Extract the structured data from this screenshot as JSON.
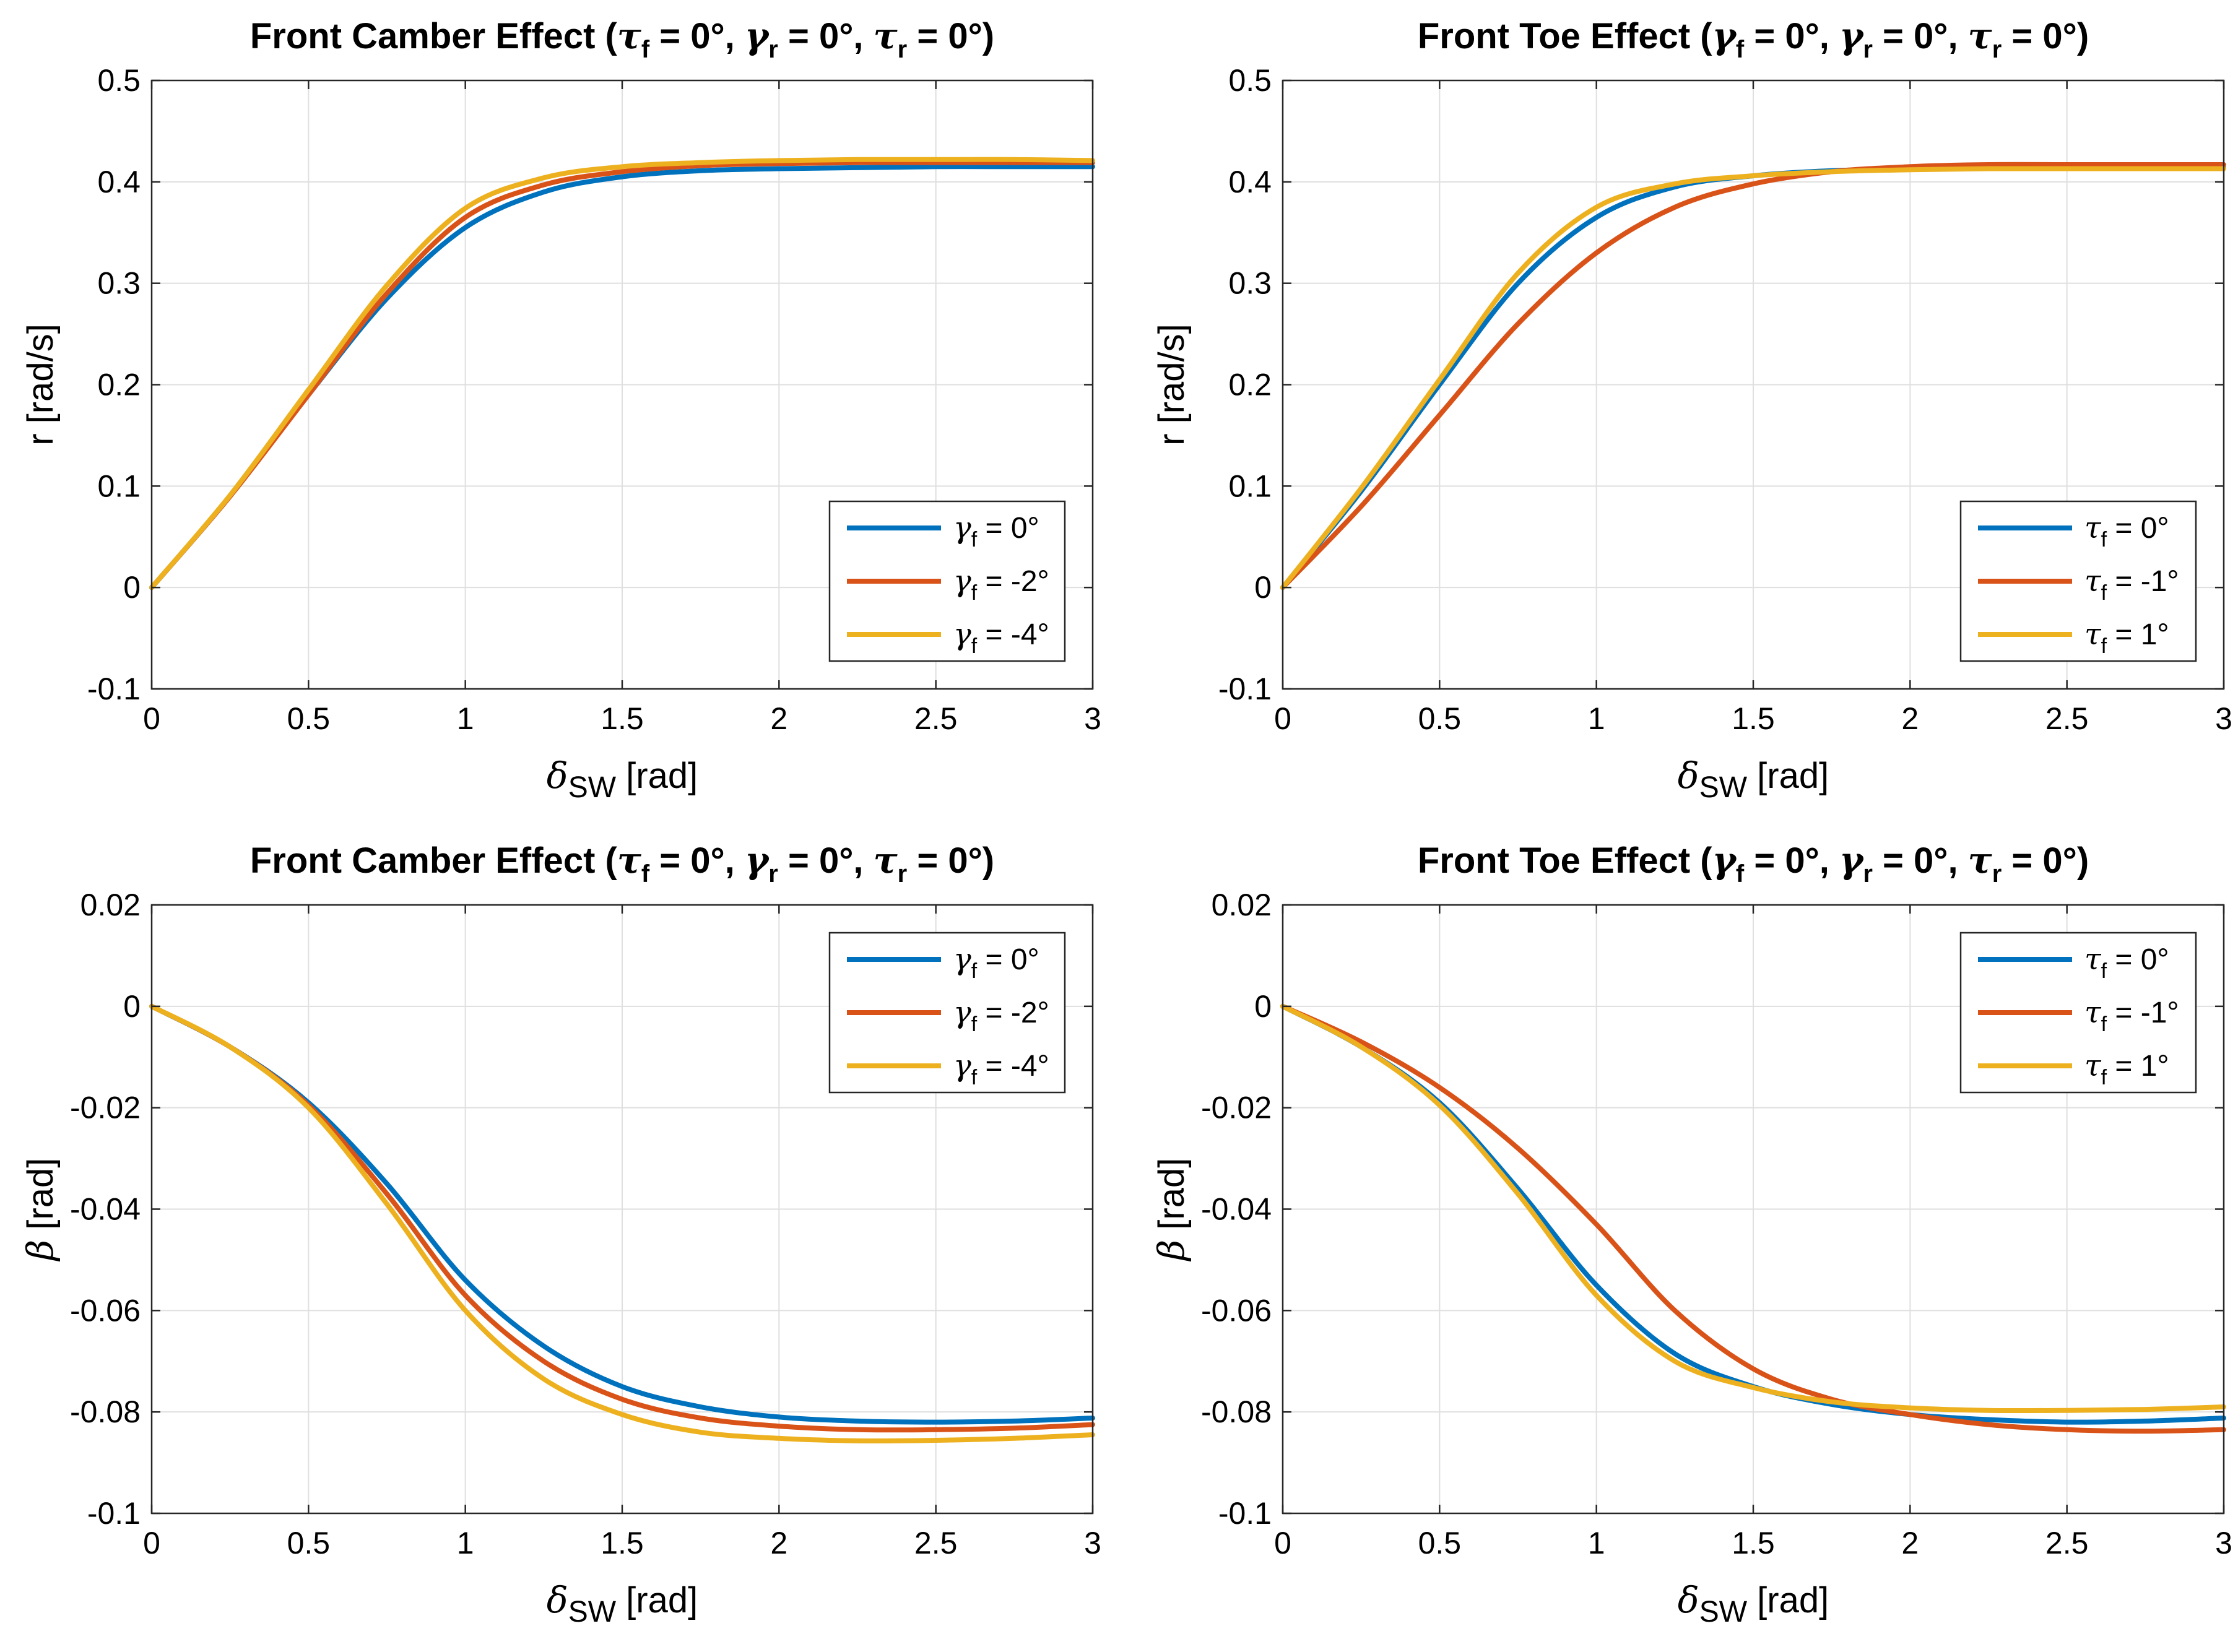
{
  "colors": {
    "series1": "#0072BD",
    "series2": "#D95319",
    "series3": "#EDB120",
    "grid": "#DFDFDF",
    "axis": "#262626"
  },
  "chart_data": [
    {
      "type": "line",
      "panel": "top-left",
      "title": "Front Camber Effect (τf = 0°, γr = 0°, τr = 0°)",
      "title_parts": {
        "prefix": "Front Camber Effect (",
        "s1": "τ",
        "sub1": "f",
        "e1": " = 0°, ",
        "s2": "γ",
        "sub2": "r",
        "e2": " = 0°, ",
        "s3": "τ",
        "sub3": "r",
        "e3": " = 0°)"
      },
      "xlabel": {
        "symbol": "δ",
        "sub": "SW",
        "unit": " [rad]"
      },
      "ylabel": {
        "symbol": "",
        "text": "r [rad/s]"
      },
      "xlim": [
        0,
        3
      ],
      "ylim": [
        -0.1,
        0.5
      ],
      "xticks": [
        0,
        0.5,
        1,
        1.5,
        2,
        2.5,
        3
      ],
      "xtick_labels": [
        "0",
        "0.5",
        "1",
        "1.5",
        "2",
        "2.5",
        "3"
      ],
      "yticks": [
        -0.1,
        0,
        0.1,
        0.2,
        0.3,
        0.4,
        0.5
      ],
      "ytick_labels": [
        "-0.1",
        "0",
        "0.1",
        "0.2",
        "0.3",
        "0.4",
        "0.5"
      ],
      "grid": true,
      "legend_position": "lower-right",
      "x": [
        0,
        0.25,
        0.5,
        0.75,
        1.0,
        1.25,
        1.5,
        1.75,
        2.0,
        2.25,
        2.5,
        2.75,
        3.0
      ],
      "series": [
        {
          "sym": "γ",
          "sub": "f",
          "val": " = 0°",
          "name": "γf = 0°",
          "values": [
            0,
            0.09,
            0.19,
            0.285,
            0.355,
            0.39,
            0.405,
            0.411,
            0.413,
            0.414,
            0.415,
            0.415,
            0.415
          ]
        },
        {
          "sym": "γ",
          "sub": "f",
          "val": " = -2°",
          "name": "γf = -2°",
          "values": [
            0,
            0.09,
            0.19,
            0.29,
            0.365,
            0.397,
            0.41,
            0.416,
            0.418,
            0.419,
            0.419,
            0.419,
            0.419
          ]
        },
        {
          "sym": "γ",
          "sub": "f",
          "val": " = -4°",
          "name": "γf = -4°",
          "values": [
            0,
            0.091,
            0.195,
            0.298,
            0.374,
            0.404,
            0.415,
            0.419,
            0.421,
            0.422,
            0.422,
            0.422,
            0.421
          ]
        }
      ]
    },
    {
      "type": "line",
      "panel": "top-right",
      "title": "Front Toe Effect (γf = 0°, γr = 0°, τr = 0°)",
      "title_parts": {
        "prefix": "Front Toe Effect (",
        "s1": "γ",
        "sub1": "f",
        "e1": " = 0°, ",
        "s2": "γ",
        "sub2": "r",
        "e2": " = 0°, ",
        "s3": "τ",
        "sub3": "r",
        "e3": " = 0°)"
      },
      "xlabel": {
        "symbol": "δ",
        "sub": "SW",
        "unit": " [rad]"
      },
      "ylabel": {
        "symbol": "",
        "text": "r [rad/s]"
      },
      "xlim": [
        0,
        3
      ],
      "ylim": [
        -0.1,
        0.5
      ],
      "xticks": [
        0,
        0.5,
        1,
        1.5,
        2,
        2.5,
        3
      ],
      "xtick_labels": [
        "0",
        "0.5",
        "1",
        "1.5",
        "2",
        "2.5",
        "3"
      ],
      "yticks": [
        -0.1,
        0,
        0.1,
        0.2,
        0.3,
        0.4,
        0.5
      ],
      "ytick_labels": [
        "-0.1",
        "0",
        "0.1",
        "0.2",
        "0.3",
        "0.4",
        "0.5"
      ],
      "grid": true,
      "legend_position": "lower-right",
      "x": [
        0,
        0.25,
        0.5,
        0.75,
        1.0,
        1.25,
        1.5,
        1.75,
        2.0,
        2.25,
        2.5,
        2.75,
        3.0
      ],
      "series": [
        {
          "sym": "τ",
          "sub": "f",
          "val": " = 0°",
          "name": "τf = 0°",
          "values": [
            0,
            0.095,
            0.2,
            0.3,
            0.365,
            0.395,
            0.406,
            0.411,
            0.413,
            0.414,
            0.414,
            0.414,
            0.414
          ]
        },
        {
          "sym": "τ",
          "sub": "f",
          "val": " = -1°",
          "name": "τf = -1°",
          "values": [
            0,
            0.08,
            0.17,
            0.26,
            0.33,
            0.375,
            0.398,
            0.41,
            0.415,
            0.417,
            0.417,
            0.417,
            0.417
          ]
        },
        {
          "sym": "τ",
          "sub": "f",
          "val": " = 1°",
          "name": "τf = 1°",
          "values": [
            0,
            0.098,
            0.205,
            0.31,
            0.375,
            0.398,
            0.406,
            0.41,
            0.412,
            0.413,
            0.413,
            0.413,
            0.413
          ]
        }
      ]
    },
    {
      "type": "line",
      "panel": "bottom-left",
      "title": "Front Camber Effect (τf = 0°, γr = 0°, τr = 0°)",
      "title_parts": {
        "prefix": "Front Camber Effect (",
        "s1": "τ",
        "sub1": "f",
        "e1": " = 0°, ",
        "s2": "γ",
        "sub2": "r",
        "e2": " = 0°, ",
        "s3": "τ",
        "sub3": "r",
        "e3": " = 0°)"
      },
      "xlabel": {
        "symbol": "δ",
        "sub": "SW",
        "unit": " [rad]"
      },
      "ylabel": {
        "symbol": "β",
        "text": " [rad]"
      },
      "xlim": [
        0,
        3
      ],
      "ylim": [
        -0.1,
        0.02
      ],
      "xticks": [
        0,
        0.5,
        1,
        1.5,
        2,
        2.5,
        3
      ],
      "xtick_labels": [
        "0",
        "0.5",
        "1",
        "1.5",
        "2",
        "2.5",
        "3"
      ],
      "yticks": [
        -0.1,
        -0.08,
        -0.06,
        -0.04,
        -0.02,
        0,
        0.02
      ],
      "ytick_labels": [
        "-0.1",
        "-0.08",
        "-0.06",
        "-0.04",
        "-0.02",
        "0",
        "0.02"
      ],
      "grid": true,
      "legend_position": "upper-right",
      "x": [
        0,
        0.25,
        0.5,
        0.75,
        1.0,
        1.25,
        1.5,
        1.75,
        2.0,
        2.25,
        2.5,
        2.75,
        3.0
      ],
      "series": [
        {
          "sym": "γ",
          "sub": "f",
          "val": " = 0°",
          "name": "γf = 0°",
          "values": [
            0,
            -0.008,
            -0.019,
            -0.035,
            -0.054,
            -0.067,
            -0.075,
            -0.079,
            -0.081,
            -0.0818,
            -0.082,
            -0.0818,
            -0.0812
          ]
        },
        {
          "sym": "γ",
          "sub": "f",
          "val": " = -2°",
          "name": "γf = -2°",
          "values": [
            0,
            -0.008,
            -0.0195,
            -0.037,
            -0.057,
            -0.07,
            -0.0775,
            -0.0812,
            -0.0828,
            -0.0835,
            -0.0835,
            -0.0832,
            -0.0825
          ]
        },
        {
          "sym": "γ",
          "sub": "f",
          "val": " = -4°",
          "name": "γf = -4°",
          "values": [
            0,
            -0.008,
            -0.02,
            -0.039,
            -0.06,
            -0.0735,
            -0.0805,
            -0.084,
            -0.0852,
            -0.0857,
            -0.0856,
            -0.0852,
            -0.0845
          ]
        }
      ]
    },
    {
      "type": "line",
      "panel": "bottom-right",
      "title": "Front Toe Effect (γf = 0°, γr = 0°, τr = 0°)",
      "title_parts": {
        "prefix": "Front Toe Effect (",
        "s1": "γ",
        "sub1": "f",
        "e1": " = 0°, ",
        "s2": "γ",
        "sub2": "r",
        "e2": " = 0°, ",
        "s3": "τ",
        "sub3": "r",
        "e3": " = 0°)"
      },
      "xlabel": {
        "symbol": "δ",
        "sub": "SW",
        "unit": " [rad]"
      },
      "ylabel": {
        "symbol": "β",
        "text": " [rad]"
      },
      "xlim": [
        0,
        3
      ],
      "ylim": [
        -0.1,
        0.02
      ],
      "xticks": [
        0,
        0.5,
        1,
        1.5,
        2,
        2.5,
        3
      ],
      "xtick_labels": [
        "0",
        "0.5",
        "1",
        "1.5",
        "2",
        "2.5",
        "3"
      ],
      "yticks": [
        -0.1,
        -0.08,
        -0.06,
        -0.04,
        -0.02,
        0,
        0.02
      ],
      "ytick_labels": [
        "-0.1",
        "-0.08",
        "-0.06",
        "-0.04",
        "-0.02",
        "0",
        "0.02"
      ],
      "grid": true,
      "legend_position": "upper-right",
      "x": [
        0,
        0.25,
        0.5,
        0.75,
        1.0,
        1.25,
        1.5,
        1.75,
        2.0,
        2.25,
        2.5,
        2.75,
        3.0
      ],
      "series": [
        {
          "sym": "τ",
          "sub": "f",
          "val": " = 0°",
          "name": "τf = 0°",
          "values": [
            0,
            -0.008,
            -0.019,
            -0.036,
            -0.055,
            -0.0685,
            -0.075,
            -0.0785,
            -0.0805,
            -0.0815,
            -0.082,
            -0.0818,
            -0.0812
          ]
        },
        {
          "sym": "τ",
          "sub": "f",
          "val": " = -1°",
          "name": "τf = -1°",
          "values": [
            0,
            -0.007,
            -0.016,
            -0.028,
            -0.043,
            -0.06,
            -0.0715,
            -0.0775,
            -0.0805,
            -0.0825,
            -0.0835,
            -0.0838,
            -0.0835
          ]
        },
        {
          "sym": "τ",
          "sub": "f",
          "val": " = 1°",
          "name": "τf = 1°",
          "values": [
            0,
            -0.008,
            -0.0195,
            -0.037,
            -0.057,
            -0.07,
            -0.0752,
            -0.078,
            -0.0792,
            -0.0797,
            -0.0797,
            -0.0795,
            -0.079
          ]
        }
      ]
    }
  ]
}
